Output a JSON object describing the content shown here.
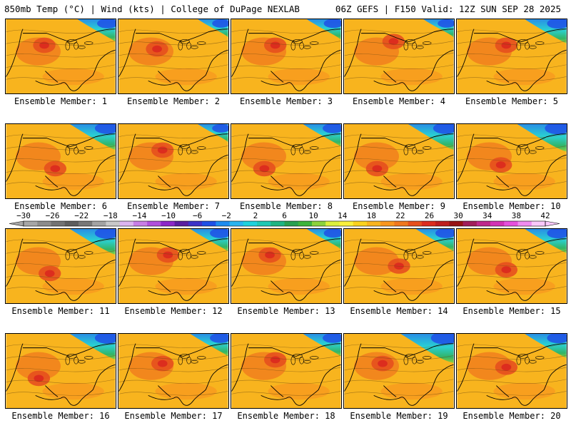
{
  "header": {
    "left": "850mb Temp (°C) | Wind (kts) | College of DuPage NEXLAB",
    "right": "06Z GEFS | F150 Valid: 12Z SUN SEP 28 2025"
  },
  "colorbar": {
    "labels": [
      "−30",
      "−26",
      "−22",
      "−18",
      "−14",
      "−10",
      "−6",
      "−2",
      "2",
      "6",
      "10",
      "14",
      "18",
      "22",
      "26",
      "30",
      "34",
      "38",
      "42"
    ],
    "colors": [
      "#a6a6a6",
      "#8c8c8c",
      "#737373",
      "#5e5e5e",
      "#787878",
      "#a3a3a3",
      "#c8c8c8",
      "#dcb4f0",
      "#c87ee6",
      "#b050dc",
      "#8c28c8",
      "#5a1ea0",
      "#3c32c8",
      "#1e50e6",
      "#1e8cf0",
      "#28b4f0",
      "#1ed2dc",
      "#1ec8b4",
      "#1eb482",
      "#28a050",
      "#3cb43c",
      "#8cd23c",
      "#dcf03c",
      "#faf03c",
      "#fad21e",
      "#f8b41e",
      "#f8961e",
      "#f0781e",
      "#e6501e",
      "#dc2d1e",
      "#be1e1e",
      "#961414",
      "#a01e5a",
      "#be288c",
      "#d232b4",
      "#e650dc",
      "#f08cf0",
      "#fac8fa"
    ]
  },
  "panels": [
    {
      "label": "Ensemble Member: 1",
      "cold": 0.5,
      "hot": [
        0.35,
        0.35
      ]
    },
    {
      "label": "Ensemble Member: 2",
      "cold": 0.4,
      "hot": [
        0.35,
        0.4
      ]
    },
    {
      "label": "Ensemble Member: 3",
      "cold": 0.45,
      "hot": [
        0.4,
        0.35
      ]
    },
    {
      "label": "Ensemble Member: 4",
      "cold": 0.4,
      "hot": [
        0.45,
        0.3
      ]
    },
    {
      "label": "Ensemble Member: 5",
      "cold": 0.55,
      "hot": [
        0.45,
        0.35
      ]
    },
    {
      "label": "Ensemble Member: 6",
      "cold": 0.6,
      "hot": [
        0.45,
        0.6
      ]
    },
    {
      "label": "Ensemble Member: 7",
      "cold": 0.4,
      "hot": [
        0.4,
        0.35
      ]
    },
    {
      "label": "Ensemble Member: 8",
      "cold": 0.5,
      "hot": [
        0.3,
        0.6
      ]
    },
    {
      "label": "Ensemble Member: 9",
      "cold": 0.6,
      "hot": [
        0.3,
        0.6
      ]
    },
    {
      "label": "Ensemble Member: 10",
      "cold": 0.65,
      "hot": [
        0.4,
        0.55
      ]
    },
    {
      "label": "Ensemble Member: 11",
      "cold": 0.6,
      "hot": [
        0.4,
        0.6
      ]
    },
    {
      "label": "Ensemble Member: 12",
      "cold": 0.5,
      "hot": [
        0.45,
        0.35
      ]
    },
    {
      "label": "Ensemble Member: 13",
      "cold": 0.45,
      "hot": [
        0.35,
        0.35
      ]
    },
    {
      "label": "Ensemble Member: 14",
      "cold": 0.5,
      "hot": [
        0.5,
        0.5
      ]
    },
    {
      "label": "Ensemble Member: 15",
      "cold": 0.55,
      "hot": [
        0.45,
        0.55
      ]
    },
    {
      "label": "Ensemble Member: 16",
      "cold": 0.6,
      "hot": [
        0.3,
        0.6
      ]
    },
    {
      "label": "Ensemble Member: 17",
      "cold": 0.5,
      "hot": [
        0.4,
        0.4
      ]
    },
    {
      "label": "Ensemble Member: 18",
      "cold": 0.5,
      "hot": [
        0.4,
        0.35
      ]
    },
    {
      "label": "Ensemble Member: 19",
      "cold": 0.7,
      "hot": [
        0.35,
        0.4
      ]
    },
    {
      "label": "Ensemble Member: 20",
      "cold": 0.55,
      "hot": [
        0.45,
        0.45
      ]
    }
  ]
}
